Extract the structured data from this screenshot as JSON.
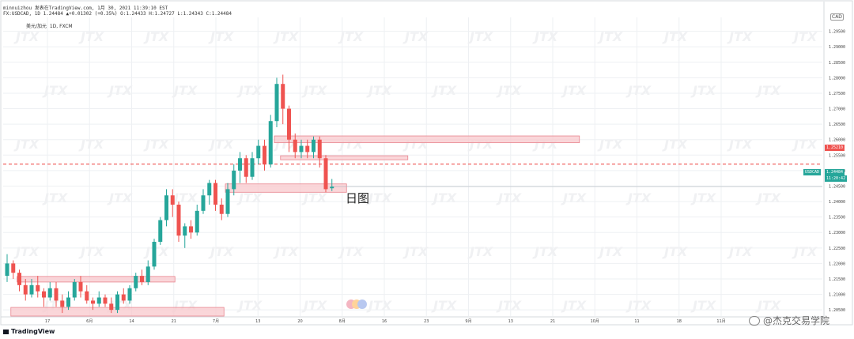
{
  "header": {
    "line1": "minnuizhou 发表在TradingView.com, 1月 30, 2021 11:39:10 EST",
    "line2": "FX:USDCAD, 1D 1.24484 ▲+0.01302 (+0.35%) O:1.24433 H:1.24727 L:1.24343 C:1.24484"
  },
  "pair_label": "美元/加元, 1D, FXCM",
  "currency_label": "CAD",
  "caption": "日图",
  "price_tags": {
    "symbol": "USDCAD",
    "current": "1.24484",
    "countdown": "11:20:42",
    "level": "1.25210"
  },
  "watermark_text": "JTX",
  "logo": {
    "name": "TradingView",
    "icon": "tradingview-logo-icon"
  },
  "source_credit": {
    "text": "@杰克交易学院",
    "icon": "wechat-icon"
  },
  "colors": {
    "up": "#26a69a",
    "down": "#ef5350",
    "zone_fill": "#f8c8cc",
    "zone_stroke": "#e8848e",
    "level_line": "#ef5350",
    "grid": "#eef0f3"
  },
  "chart_data": {
    "type": "candlestick",
    "symbol": "USDCAD",
    "timeframe": "1D",
    "ylim": [
      1.203,
      1.2995
    ],
    "y_ticks": [
      1.205,
      1.21,
      1.215,
      1.22,
      1.225,
      1.23,
      1.235,
      1.24,
      1.245,
      1.25,
      1.255,
      1.26,
      1.265,
      1.27,
      1.275,
      1.28,
      1.285,
      1.29,
      1.295
    ],
    "y_tick_labels": [
      "1.20500",
      "1.21000",
      "1.21500",
      "1.22000",
      "1.22500",
      "1.23000",
      "1.23500",
      "1.24000",
      "1.24500",
      "1.25000",
      "1.25500",
      "1.26000",
      "1.26500",
      "1.27000",
      "1.27500",
      "1.28000",
      "1.28500",
      "1.29000",
      "1.29500"
    ],
    "x_labels": [
      "17",
      "6月",
      "14",
      "21",
      "7月",
      "13",
      "20",
      "8月",
      "16",
      "23",
      "9月",
      "13",
      "21",
      "10月",
      "11",
      "18",
      "11月"
    ],
    "level_line": 1.2521,
    "current_price": 1.24484,
    "candles": [
      [
        1.216,
        1.22,
        1.214,
        1.223
      ],
      [
        1.22,
        1.217,
        1.215,
        1.221
      ],
      [
        1.217,
        1.213,
        1.211,
        1.218
      ],
      [
        1.213,
        1.21,
        1.208,
        1.215
      ],
      [
        1.21,
        1.213,
        1.209,
        1.215
      ],
      [
        1.213,
        1.211,
        1.209,
        1.216
      ],
      [
        1.211,
        1.209,
        1.206,
        1.212
      ],
      [
        1.209,
        1.212,
        1.208,
        1.214
      ],
      [
        1.212,
        1.208,
        1.206,
        1.214
      ],
      [
        1.208,
        1.206,
        1.204,
        1.21
      ],
      [
        1.206,
        1.209,
        1.205,
        1.211
      ],
      [
        1.209,
        1.214,
        1.208,
        1.215
      ],
      [
        1.214,
        1.211,
        1.209,
        1.216
      ],
      [
        1.211,
        1.208,
        1.207,
        1.213
      ],
      [
        1.208,
        1.207,
        1.205,
        1.209
      ],
      [
        1.207,
        1.209,
        1.206,
        1.211
      ],
      [
        1.209,
        1.207,
        1.206,
        1.21
      ],
      [
        1.207,
        1.205,
        1.204,
        1.209
      ],
      [
        1.205,
        1.21,
        1.204,
        1.211
      ],
      [
        1.21,
        1.208,
        1.207,
        1.212
      ],
      [
        1.208,
        1.212,
        1.207,
        1.213
      ],
      [
        1.212,
        1.216,
        1.211,
        1.217
      ],
      [
        1.216,
        1.214,
        1.213,
        1.218
      ],
      [
        1.214,
        1.219,
        1.213,
        1.221
      ],
      [
        1.219,
        1.227,
        1.218,
        1.228
      ],
      [
        1.227,
        1.234,
        1.226,
        1.235
      ],
      [
        1.234,
        1.242,
        1.232,
        1.244
      ],
      [
        1.242,
        1.239,
        1.235,
        1.244
      ],
      [
        1.239,
        1.229,
        1.227,
        1.24
      ],
      [
        1.229,
        1.232,
        1.225,
        1.233
      ],
      [
        1.232,
        1.23,
        1.228,
        1.234
      ],
      [
        1.23,
        1.237,
        1.229,
        1.239
      ],
      [
        1.237,
        1.242,
        1.236,
        1.244
      ],
      [
        1.242,
        1.246,
        1.239,
        1.247
      ],
      [
        1.246,
        1.239,
        1.237,
        1.247
      ],
      [
        1.239,
        1.236,
        1.234,
        1.241
      ],
      [
        1.236,
        1.244,
        1.235,
        1.246
      ],
      [
        1.244,
        1.25,
        1.242,
        1.252
      ],
      [
        1.25,
        1.254,
        1.246,
        1.256
      ],
      [
        1.254,
        1.248,
        1.246,
        1.255
      ],
      [
        1.248,
        1.254,
        1.247,
        1.256
      ],
      [
        1.254,
        1.258,
        1.252,
        1.26
      ],
      [
        1.258,
        1.252,
        1.25,
        1.26
      ],
      [
        1.252,
        1.266,
        1.251,
        1.268
      ],
      [
        1.266,
        1.278,
        1.264,
        1.28
      ],
      [
        1.278,
        1.27,
        1.265,
        1.281
      ],
      [
        1.27,
        1.26,
        1.256,
        1.271
      ],
      [
        1.26,
        1.256,
        1.254,
        1.262
      ],
      [
        1.256,
        1.258,
        1.254,
        1.26
      ],
      [
        1.258,
        1.256,
        1.254,
        1.26
      ],
      [
        1.256,
        1.26,
        1.254,
        1.261
      ],
      [
        1.26,
        1.254,
        1.251,
        1.261
      ],
      [
        1.254,
        1.244,
        1.243,
        1.255
      ],
      [
        1.2443,
        1.2448,
        1.2434,
        1.2473
      ]
    ],
    "zones": [
      {
        "name": "zone-mid-1",
        "y_low": 1.259,
        "y_high": 1.2612,
        "x_start_index": 44,
        "x_end_index": 93
      },
      {
        "name": "zone-mid-2",
        "y_low": 1.2535,
        "y_high": 1.2548,
        "x_start_index": 45,
        "x_end_index": 65
      },
      {
        "name": "zone-mid-3",
        "y_low": 1.243,
        "y_high": 1.2457,
        "x_start_index": 36,
        "x_end_index": 55
      },
      {
        "name": "zone-low-1",
        "y_low": 1.214,
        "y_high": 1.2158,
        "x_start_index": 2,
        "x_end_index": 27
      },
      {
        "name": "zone-low-2",
        "y_low": 1.203,
        "y_high": 1.2058,
        "x_start_index": 1,
        "x_end_index": 35
      }
    ]
  }
}
